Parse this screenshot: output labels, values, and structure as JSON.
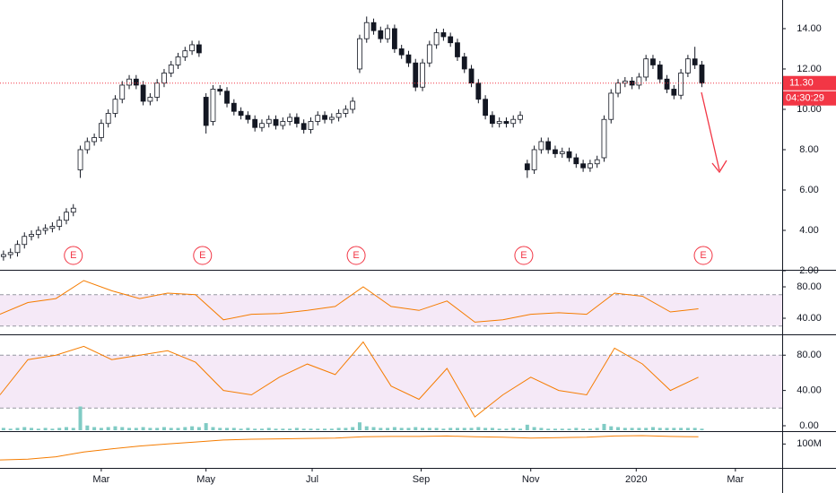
{
  "chart_data": [
    {
      "type": "candlestick",
      "xlim": [
        0,
        112
      ],
      "ylim": [
        2,
        15.42
      ],
      "yticks": [
        {
          "value": 2,
          "label": "2.00"
        },
        {
          "value": 4,
          "label": "4.00"
        },
        {
          "value": 6,
          "label": "6.00"
        },
        {
          "value": 8,
          "label": "8.00"
        },
        {
          "value": 10,
          "label": "10.00"
        },
        {
          "value": 12,
          "label": "12.00"
        },
        {
          "value": 14,
          "label": "14.00"
        }
      ],
      "xticks": [
        {
          "value": 14.5,
          "label": "Mar"
        },
        {
          "value": 29.5,
          "label": "May"
        },
        {
          "value": 44.7,
          "label": "Jul"
        },
        {
          "value": 60.3,
          "label": "Sep"
        },
        {
          "value": 76,
          "label": "Nov"
        },
        {
          "value": 91.1,
          "label": "2020"
        },
        {
          "value": 105.3,
          "label": "Mar"
        }
      ],
      "up_color": "#ffffff",
      "down_color": "#131722",
      "wick_color": "#131722",
      "open": [
        2.7,
        2.8,
        2.9,
        3.3,
        3.7,
        3.8,
        4.0,
        4.1,
        4.2,
        4.5,
        4.9,
        7.0,
        8.0,
        8.4,
        8.6,
        9.3,
        9.8,
        10.5,
        11.2,
        11.5,
        11.2,
        10.4,
        10.6,
        11.3,
        11.8,
        12.2,
        12.6,
        12.9,
        13.2,
        10.6,
        9.4,
        11.0,
        10.9,
        10.3,
        9.9,
        9.7,
        9.5,
        9.1,
        9.3,
        9.5,
        9.2,
        9.4,
        9.6,
        9.3,
        9.0,
        9.4,
        9.7,
        9.5,
        9.6,
        9.8,
        10.0,
        12.0,
        13.5,
        14.3,
        13.9,
        13.5,
        14.0,
        13.0,
        12.7,
        12.3,
        11.1,
        12.3,
        13.2,
        13.8,
        13.6,
        13.3,
        12.6,
        12.0,
        11.3,
        10.5,
        9.7,
        9.3,
        9.4,
        9.3,
        9.5,
        7.3,
        7.0,
        8.0,
        8.4,
        8.0,
        7.8,
        7.9,
        7.6,
        7.3,
        7.1,
        7.3,
        7.6,
        9.5,
        10.8,
        11.3,
        11.4,
        11.2,
        11.6,
        12.5,
        12.2,
        11.5,
        11.0,
        10.7,
        11.8,
        12.5,
        12.2
      ],
      "high": [
        3.0,
        3.1,
        3.5,
        3.9,
        4.0,
        4.2,
        4.3,
        4.4,
        4.7,
        5.1,
        5.3,
        8.2,
        8.6,
        8.8,
        9.5,
        10.0,
        10.7,
        11.4,
        11.7,
        11.7,
        11.4,
        10.8,
        11.5,
        12.0,
        12.4,
        12.8,
        13.1,
        13.4,
        13.4,
        10.8,
        11.2,
        11.2,
        11.1,
        10.5,
        10.1,
        9.9,
        9.7,
        9.5,
        9.7,
        9.7,
        9.6,
        9.8,
        9.8,
        9.5,
        9.6,
        9.9,
        9.9,
        9.8,
        10.0,
        10.2,
        10.6,
        13.7,
        14.6,
        14.5,
        14.1,
        14.2,
        14.2,
        13.2,
        12.9,
        12.5,
        12.5,
        13.4,
        14.0,
        14.0,
        13.8,
        13.5,
        12.8,
        12.2,
        11.5,
        10.7,
        9.9,
        9.6,
        9.6,
        9.7,
        9.9,
        7.5,
        8.2,
        8.6,
        8.6,
        8.2,
        8.1,
        8.1,
        7.8,
        7.5,
        7.5,
        7.7,
        9.7,
        11.0,
        11.5,
        11.6,
        11.6,
        11.8,
        12.7,
        12.7,
        12.4,
        11.7,
        11.2,
        12.0,
        12.7,
        13.1,
        12.4
      ],
      "low": [
        2.5,
        2.6,
        2.7,
        3.1,
        3.5,
        3.6,
        3.8,
        3.9,
        4.0,
        4.3,
        4.7,
        6.6,
        7.8,
        8.2,
        8.4,
        9.1,
        9.6,
        10.3,
        11.0,
        11.0,
        10.2,
        10.2,
        10.4,
        11.1,
        11.6,
        12.0,
        12.4,
        12.7,
        12.6,
        8.8,
        9.2,
        10.7,
        10.1,
        9.7,
        9.5,
        9.3,
        8.9,
        8.9,
        9.1,
        9.0,
        9.0,
        9.2,
        9.1,
        8.8,
        8.8,
        9.2,
        9.3,
        9.3,
        9.4,
        9.6,
        9.8,
        11.8,
        13.3,
        13.7,
        13.3,
        13.3,
        12.8,
        12.5,
        12.1,
        10.9,
        10.9,
        12.1,
        13.0,
        13.4,
        13.1,
        12.4,
        11.8,
        11.1,
        10.3,
        9.5,
        9.1,
        9.1,
        9.1,
        9.1,
        9.3,
        6.6,
        6.8,
        7.8,
        7.8,
        7.6,
        7.6,
        7.4,
        7.1,
        6.9,
        6.9,
        7.1,
        7.4,
        9.3,
        10.6,
        11.1,
        11.0,
        11.0,
        11.4,
        12.0,
        11.3,
        10.8,
        10.5,
        10.5,
        11.6,
        12.0,
        11.1
      ],
      "close": [
        2.8,
        2.9,
        3.3,
        3.7,
        3.8,
        4.0,
        4.1,
        4.2,
        4.5,
        4.9,
        5.1,
        8.0,
        8.4,
        8.6,
        9.3,
        9.8,
        10.5,
        11.2,
        11.5,
        11.2,
        10.4,
        10.6,
        11.3,
        11.8,
        12.2,
        12.6,
        12.9,
        13.2,
        12.8,
        9.2,
        11.0,
        10.9,
        10.3,
        9.9,
        9.7,
        9.5,
        9.1,
        9.3,
        9.5,
        9.2,
        9.4,
        9.6,
        9.3,
        9.0,
        9.4,
        9.7,
        9.5,
        9.6,
        9.8,
        10.0,
        10.4,
        13.5,
        14.3,
        13.9,
        13.5,
        14.0,
        13.0,
        12.7,
        12.3,
        11.1,
        12.3,
        13.2,
        13.8,
        13.6,
        13.3,
        12.6,
        12.0,
        11.3,
        10.5,
        9.7,
        9.3,
        9.4,
        9.3,
        9.5,
        9.7,
        7.0,
        8.0,
        8.4,
        8.0,
        7.8,
        7.9,
        7.6,
        7.3,
        7.1,
        7.3,
        7.5,
        9.5,
        10.8,
        11.3,
        11.4,
        11.2,
        11.6,
        12.5,
        12.2,
        11.5,
        11.0,
        10.7,
        11.8,
        12.5,
        12.2,
        11.3
      ],
      "last_price": {
        "value": 11.3,
        "label": "11.30"
      },
      "last_price_color": "#f23645",
      "countdown": "04:30:29",
      "events": {
        "x": [
          10.5,
          29,
          51,
          75,
          100.7
        ],
        "labels": [
          "E",
          "E",
          "E",
          "E",
          "E"
        ],
        "color": "#f23645"
      }
    },
    {
      "type": "line",
      "xlim": [
        0,
        112
      ],
      "ylim": [
        20.6,
        100.6
      ],
      "yticks": [
        {
          "value": 40,
          "label": "40.00"
        },
        {
          "value": 80,
          "label": "80.00"
        }
      ],
      "band": [
        30,
        70
      ],
      "band_color": "#9c27b0",
      "color": "#f57c00",
      "x": [
        0,
        4,
        8,
        12,
        16,
        20,
        24,
        28,
        32,
        36,
        40,
        44,
        48,
        52,
        56,
        60,
        64,
        68,
        72,
        76,
        80,
        84,
        88,
        92,
        96,
        100
      ],
      "values": [
        45,
        60,
        65,
        88,
        75,
        65,
        72,
        70,
        38,
        45,
        46,
        50,
        55,
        80,
        55,
        50,
        62,
        35,
        38,
        45,
        47,
        45,
        72,
        68,
        48,
        52
      ]
    },
    {
      "type": "line",
      "xlim": [
        0,
        112
      ],
      "ylim": [
        -5.1,
        102.6
      ],
      "yticks": [
        {
          "value": 0,
          "label": "0.00"
        },
        {
          "value": 40,
          "label": "40.00"
        },
        {
          "value": 80,
          "label": "80.00"
        }
      ],
      "band": [
        20,
        80
      ],
      "band_color": "#9c27b0",
      "color": "#f57c00",
      "x": [
        0,
        4,
        8,
        12,
        16,
        20,
        24,
        28,
        32,
        36,
        40,
        44,
        48,
        52,
        56,
        60,
        64,
        68,
        72,
        76,
        80,
        84,
        88,
        92,
        96,
        100
      ],
      "values": [
        35,
        75,
        80,
        90,
        75,
        80,
        85,
        72,
        40,
        35,
        55,
        70,
        58,
        95,
        45,
        30,
        65,
        10,
        35,
        55,
        40,
        35,
        88,
        70,
        40,
        55
      ]
    },
    {
      "type": "bar",
      "xlim": [
        0,
        112
      ],
      "ylim": [
        0,
        120
      ],
      "color": "#80cbc4",
      "values": [
        3,
        2,
        3,
        4,
        3,
        2,
        3,
        2,
        3,
        4,
        3,
        30,
        6,
        4,
        3,
        4,
        5,
        4,
        3,
        3,
        4,
        3,
        3,
        4,
        3,
        3,
        4,
        5,
        4,
        9,
        4,
        3,
        3,
        3,
        2,
        3,
        2,
        2,
        3,
        2,
        2,
        2,
        3,
        2,
        2,
        2,
        2,
        2,
        3,
        3,
        4,
        10,
        5,
        4,
        3,
        3,
        4,
        3,
        3,
        4,
        3,
        3,
        3,
        2,
        3,
        3,
        3,
        3,
        4,
        3,
        3,
        2,
        2,
        3,
        2,
        7,
        4,
        3,
        2,
        2,
        2,
        2,
        3,
        2,
        2,
        3,
        8,
        5,
        4,
        3,
        3,
        3,
        3,
        4,
        3,
        3,
        3,
        3,
        3,
        3,
        2
      ]
    },
    {
      "type": "line",
      "xlim": [
        0,
        112
      ],
      "ylim": [
        40,
        130
      ],
      "yticks": [
        {
          "value": 100,
          "label": "100M"
        }
      ],
      "color": "#f57c00",
      "x": [
        0,
        4,
        8,
        12,
        16,
        20,
        24,
        28,
        32,
        36,
        40,
        44,
        48,
        52,
        56,
        60,
        64,
        68,
        72,
        76,
        80,
        84,
        88,
        92,
        96,
        100
      ],
      "values": [
        60,
        62,
        68,
        80,
        88,
        95,
        100,
        105,
        110,
        112,
        113,
        114,
        115,
        118,
        119,
        119,
        120,
        118,
        117,
        115,
        116,
        117,
        120,
        121,
        119,
        118
      ]
    }
  ]
}
